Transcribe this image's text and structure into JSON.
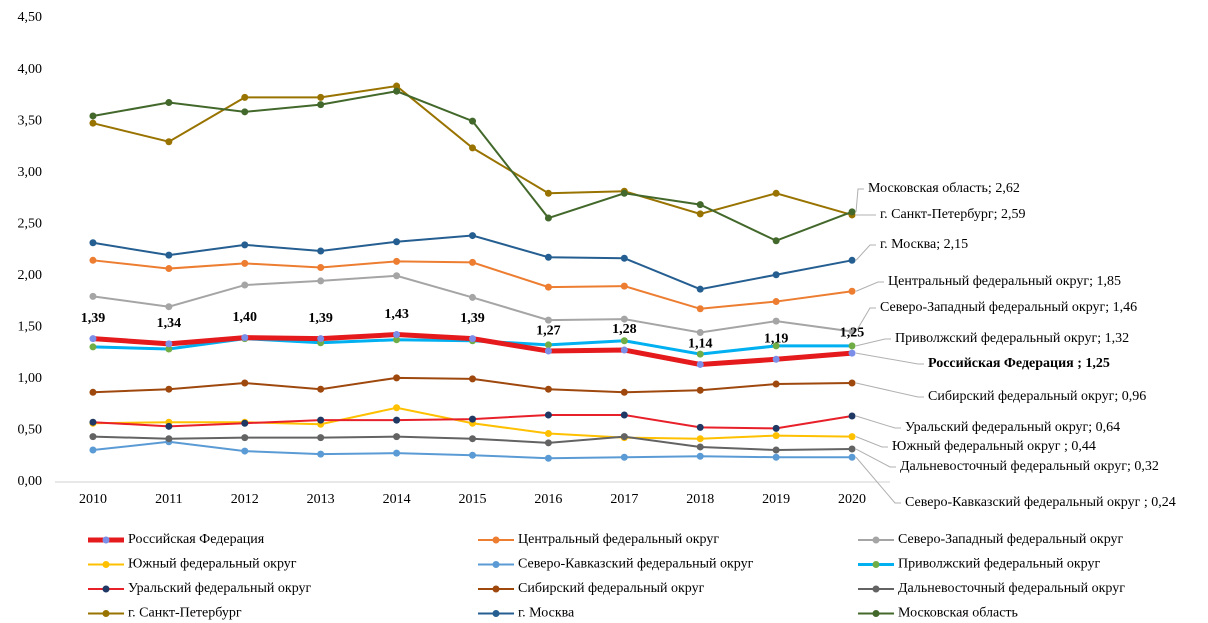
{
  "chart_data": {
    "type": "line",
    "categories": [
      "2010",
      "2011",
      "2012",
      "2013",
      "2014",
      "2015",
      "2016",
      "2017",
      "2018",
      "2019",
      "2020"
    ],
    "ylim": [
      0,
      4.5
    ],
    "yticks": [
      {
        "value": 0,
        "label": "0,00"
      },
      {
        "value": 0.5,
        "label": "0,50"
      },
      {
        "value": 1,
        "label": "1,00"
      },
      {
        "value": 1.5,
        "label": "1,50"
      },
      {
        "value": 2,
        "label": "2,00"
      },
      {
        "value": 2.5,
        "label": "2,50"
      },
      {
        "value": 3,
        "label": "3,00"
      },
      {
        "value": 3.5,
        "label": "3,50"
      },
      {
        "value": 4,
        "label": "4,00"
      },
      {
        "value": 4.5,
        "label": "4,50"
      }
    ],
    "grid": false,
    "series": [
      {
        "name": "Российская Федерация",
        "color": "#e41a1c",
        "marker_color": "#7b8ee8",
        "line_width": 5,
        "values": [
          1.39,
          1.34,
          1.4,
          1.39,
          1.43,
          1.39,
          1.27,
          1.28,
          1.14,
          1.19,
          1.25
        ],
        "value_labels": [
          "1,39",
          "1,34",
          "1,40",
          "1,39",
          "1,43",
          "1,39",
          "1,27",
          "1,28",
          "1,14",
          "1,19",
          "1,25"
        ]
      },
      {
        "name": "Центральный федеральный округ",
        "color": "#ed7d31",
        "marker_color": "#ed7d31",
        "line_width": 2,
        "values": [
          2.15,
          2.07,
          2.12,
          2.08,
          2.14,
          2.13,
          1.89,
          1.9,
          1.68,
          1.75,
          1.85
        ]
      },
      {
        "name": "Северо-Западный федеральный округ",
        "color": "#a5a5a5",
        "marker_color": "#a5a5a5",
        "line_width": 2,
        "values": [
          1.8,
          1.7,
          1.91,
          1.95,
          2.0,
          1.79,
          1.57,
          1.58,
          1.45,
          1.56,
          1.46
        ]
      },
      {
        "name": "Южный федеральный округ",
        "color": "#ffc000",
        "marker_color": "#ffc000",
        "line_width": 2,
        "values": [
          0.57,
          0.58,
          0.58,
          0.56,
          0.72,
          0.57,
          0.47,
          0.43,
          0.42,
          0.45,
          0.44
        ]
      },
      {
        "name": "Северо-Кавказский федеральный округ",
        "color": "#5b9bd5",
        "marker_color": "#5b9bd5",
        "line_width": 2,
        "values": [
          0.31,
          0.39,
          0.3,
          0.27,
          0.28,
          0.26,
          0.23,
          0.24,
          0.25,
          0.24,
          0.24
        ]
      },
      {
        "name": "Приволжский федеральный округ",
        "color": "#00b0f0",
        "marker_color": "#70ad47",
        "line_width": 3,
        "values": [
          1.31,
          1.29,
          1.39,
          1.35,
          1.38,
          1.37,
          1.33,
          1.37,
          1.24,
          1.32,
          1.32
        ]
      },
      {
        "name": "Уральский федеральный округ",
        "color": "#e8202a",
        "marker_color": "#1f3864",
        "line_width": 2,
        "values": [
          0.58,
          0.54,
          0.57,
          0.6,
          0.6,
          0.61,
          0.65,
          0.65,
          0.53,
          0.52,
          0.64
        ]
      },
      {
        "name": "Сибирский федеральный округ",
        "color": "#9e480e",
        "marker_color": "#9e480e",
        "line_width": 2,
        "values": [
          0.87,
          0.9,
          0.96,
          0.9,
          1.01,
          1.0,
          0.9,
          0.87,
          0.89,
          0.95,
          0.96
        ]
      },
      {
        "name": "Дальневосточный федеральный округ",
        "color": "#636363",
        "marker_color": "#636363",
        "line_width": 2,
        "values": [
          0.44,
          0.42,
          0.43,
          0.43,
          0.44,
          0.42,
          0.38,
          0.44,
          0.34,
          0.31,
          0.32
        ]
      },
      {
        "name": "г. Санкт-Петербург",
        "color": "#997300",
        "marker_color": "#997300",
        "line_width": 2,
        "values": [
          3.48,
          3.3,
          3.73,
          3.73,
          3.84,
          3.24,
          2.8,
          2.82,
          2.6,
          2.8,
          2.59
        ]
      },
      {
        "name": "г. Москва",
        "color": "#255e91",
        "marker_color": "#255e91",
        "line_width": 2,
        "values": [
          2.32,
          2.2,
          2.3,
          2.24,
          2.33,
          2.39,
          2.18,
          2.17,
          1.87,
          2.01,
          2.15
        ]
      },
      {
        "name": "Московская область",
        "color": "#43682b",
        "marker_color": "#43682b",
        "line_width": 2,
        "values": [
          3.55,
          3.68,
          3.59,
          3.66,
          3.79,
          3.5,
          2.56,
          2.8,
          2.69,
          2.34,
          2.62
        ]
      }
    ],
    "annotations": [
      {
        "text": "Московская область; 2,62",
        "color": "#e03030"
      },
      {
        "text": "г. Санкт-Петербург; 2,59",
        "color": "#e03030"
      },
      {
        "text": "г. Москва; 2,15",
        "color": "#e03030"
      },
      {
        "text": "Центральный федеральный округ; 1,85",
        "color": "#000000"
      },
      {
        "text": "Северо-Западный федеральный округ; 1,46",
        "color": "#000000"
      },
      {
        "text": "Приволжский  федеральный округ; 1,32",
        "color": "#000000"
      },
      {
        "text": "Российская Федерация ; 1,25",
        "color": "#000000"
      },
      {
        "text": "Сибирский федеральный округ; 0,96",
        "color": "#000000"
      },
      {
        "text": "Уральский федеральный округ; 0,64",
        "color": "#000000"
      },
      {
        "text": "Южный федеральный округ ; 0,44",
        "color": "#000000"
      },
      {
        "text": "Дальневосточный федеральный округ; 0,32",
        "color": "#000000"
      },
      {
        "text": "Северо-Кавказский федеральный округ ; 0,24",
        "color": "#7f7f7f"
      }
    ]
  }
}
